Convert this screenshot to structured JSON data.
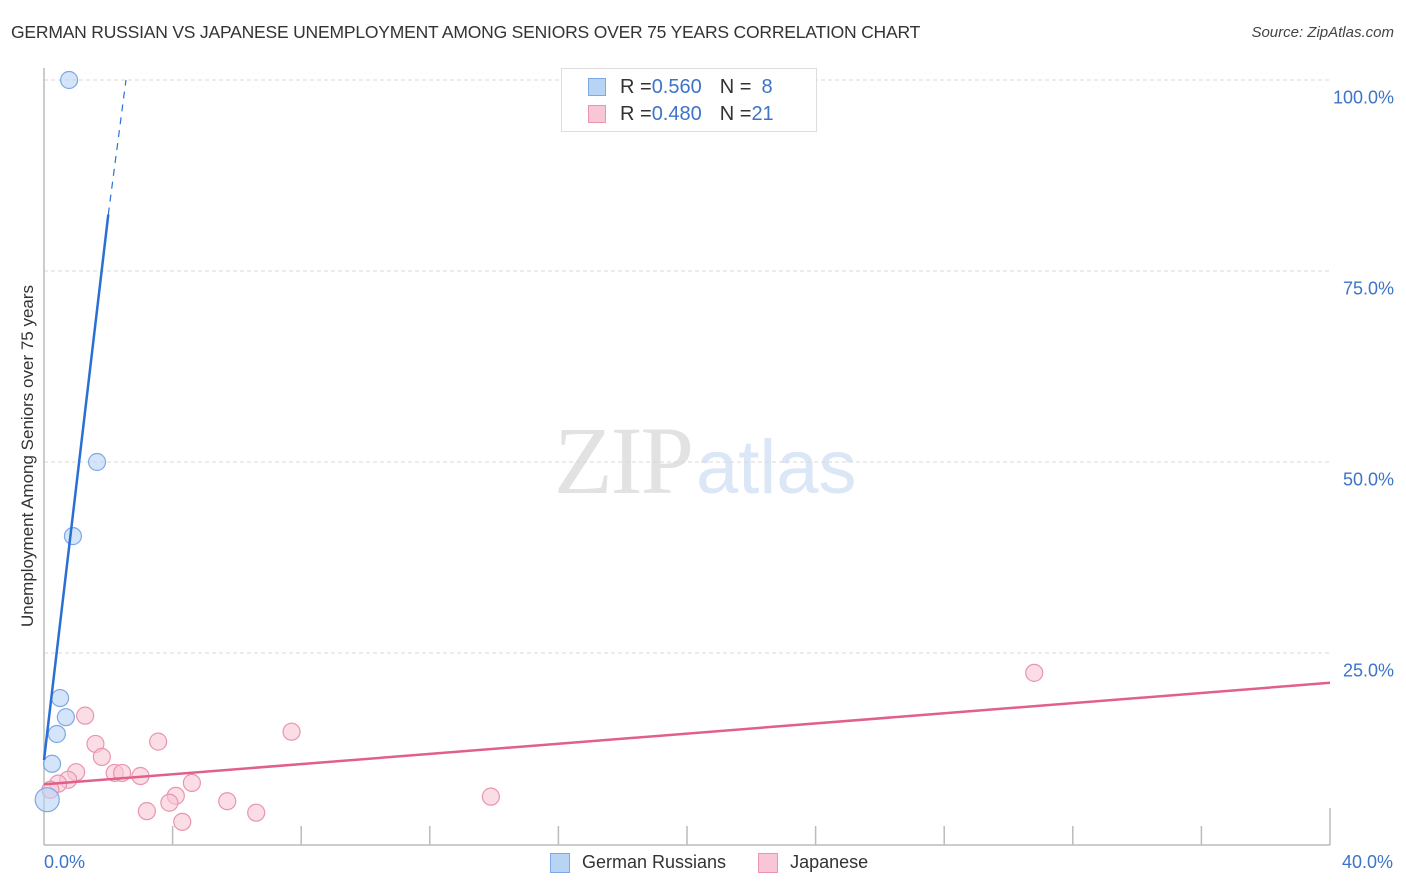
{
  "header": {
    "title": "GERMAN RUSSIAN VS JAPANESE UNEMPLOYMENT AMONG SENIORS OVER 75 YEARS CORRELATION CHART",
    "source": "Source: ZipAtlas.com"
  },
  "watermark": {
    "zip": "ZIP",
    "atlas": "atlas"
  },
  "axes": {
    "ylabel": "Unemployment Among Seniors over 75 years",
    "y_ticks": [
      {
        "label": "100.0%",
        "value": 100
      },
      {
        "label": "75.0%",
        "value": 75
      },
      {
        "label": "50.0%",
        "value": 50
      },
      {
        "label": "25.0%",
        "value": 25
      }
    ],
    "x_ticks": [
      {
        "label": "0.0%",
        "value": 0
      },
      {
        "label": "40.0%",
        "value": 40
      }
    ]
  },
  "legend_top": {
    "rows": [
      {
        "r_label": "R = ",
        "r_value": "0.560",
        "n_label": "N = ",
        "n_value": "8"
      },
      {
        "r_label": "R = ",
        "r_value": "0.480",
        "n_label": "N = ",
        "n_value": "21"
      }
    ]
  },
  "legend_bottom": {
    "items": [
      {
        "label": "German Russians"
      },
      {
        "label": "Japanese"
      }
    ]
  },
  "colors": {
    "blue_fill": "#b8d4f5",
    "blue_stroke": "#7ea8e4",
    "blue_line": "#2a6fd4",
    "pink_fill": "#f9c6d6",
    "pink_stroke": "#ea94b0",
    "pink_line": "#e0608a",
    "axis_text": "#3d74c9",
    "grid": "#d8d8d8"
  },
  "chart_data": {
    "type": "scatter",
    "title": "GERMAN RUSSIAN VS JAPANESE UNEMPLOYMENT AMONG SENIORS OVER 75 YEARS CORRELATION CHART",
    "xlabel": "",
    "ylabel": "Unemployment Among Seniors over 75 years",
    "xlim": [
      0,
      40
    ],
    "ylim": [
      0,
      100
    ],
    "x_tick_count": 11,
    "grid": "horizontal dashed at 25, 50, 75, 100",
    "legend_position": "top-center and bottom-center",
    "series": [
      {
        "name": "German Russians",
        "R": 0.56,
        "N": 8,
        "points": [
          {
            "x": 0.78,
            "y": 100.0
          },
          {
            "x": 1.65,
            "y": 50.0
          },
          {
            "x": 0.9,
            "y": 40.3
          },
          {
            "x": 0.5,
            "y": 19.1
          },
          {
            "x": 0.68,
            "y": 16.6
          },
          {
            "x": 0.4,
            "y": 14.4
          },
          {
            "x": 0.25,
            "y": 10.5
          },
          {
            "x": 0.1,
            "y": 5.8
          }
        ],
        "trend": {
          "x0": 0,
          "y0": 11.0,
          "x1": 2.0,
          "y1": 82.4,
          "dashed_to": {
            "x": 2.55,
            "y": 100
          }
        }
      },
      {
        "name": "Japanese",
        "R": 0.48,
        "N": 21,
        "points": [
          {
            "x": 30.8,
            "y": 22.4
          },
          {
            "x": 1.28,
            "y": 16.8
          },
          {
            "x": 7.7,
            "y": 14.7
          },
          {
            "x": 1.6,
            "y": 13.1
          },
          {
            "x": 3.55,
            "y": 13.4
          },
          {
            "x": 1.8,
            "y": 11.4
          },
          {
            "x": 1.0,
            "y": 9.4
          },
          {
            "x": 2.2,
            "y": 9.3
          },
          {
            "x": 2.43,
            "y": 9.3
          },
          {
            "x": 3.0,
            "y": 8.9
          },
          {
            "x": 0.75,
            "y": 8.4
          },
          {
            "x": 0.44,
            "y": 7.9
          },
          {
            "x": 4.6,
            "y": 8.0
          },
          {
            "x": 0.2,
            "y": 7.1
          },
          {
            "x": 4.1,
            "y": 6.3
          },
          {
            "x": 13.9,
            "y": 6.2
          },
          {
            "x": 5.7,
            "y": 5.6
          },
          {
            "x": 3.9,
            "y": 5.4
          },
          {
            "x": 3.2,
            "y": 4.3
          },
          {
            "x": 6.6,
            "y": 4.1
          },
          {
            "x": 4.3,
            "y": 2.9
          }
        ],
        "trend": {
          "x0": 0,
          "y0": 7.8,
          "x1": 40,
          "y1": 21.1
        }
      }
    ]
  }
}
